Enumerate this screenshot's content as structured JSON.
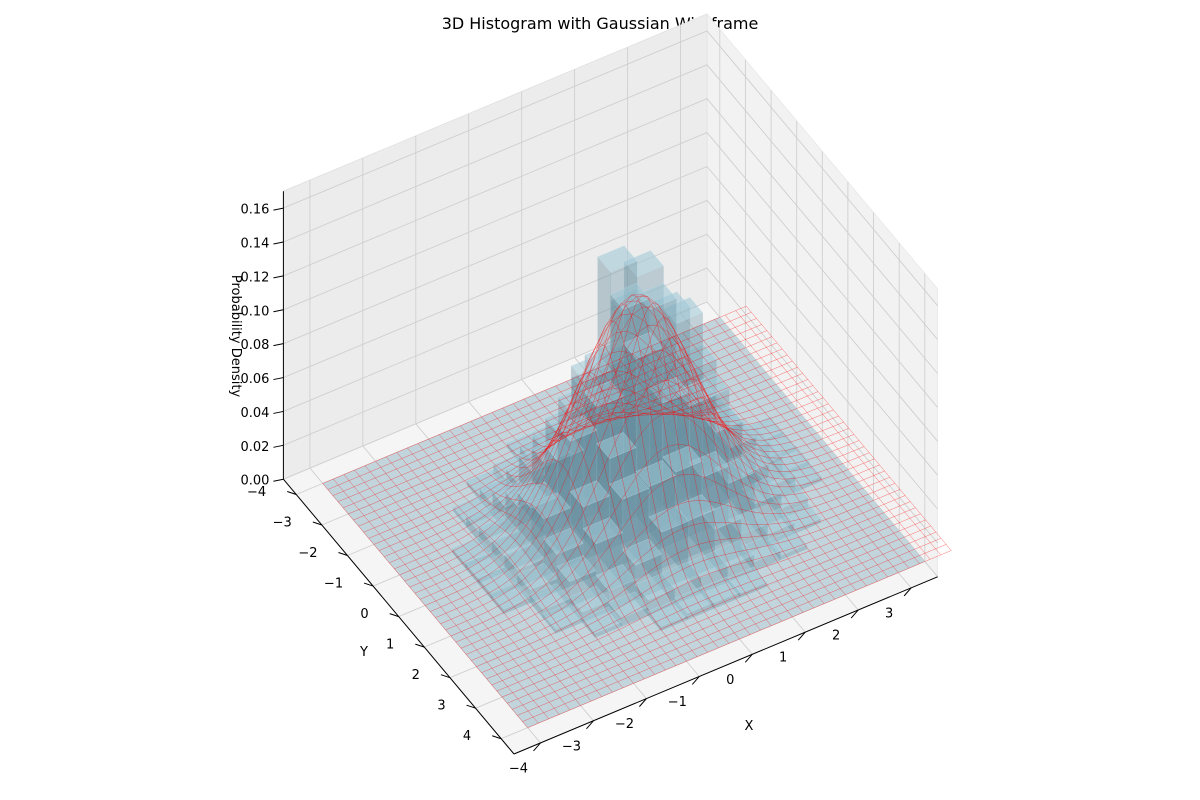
{
  "chart_data": {
    "type": "3d-histogram",
    "title": "3D Histogram with Gaussian Wireframe",
    "xlabel": "X",
    "ylabel": "Y",
    "zlabel": "Probability Density",
    "x_ticks": [
      "−4",
      "−3",
      "−2",
      "−1",
      "0",
      "1",
      "2",
      "3"
    ],
    "y_ticks": [
      "−4",
      "−3",
      "−2",
      "−1",
      "0",
      "1",
      "2",
      "3",
      "4"
    ],
    "z_ticks": [
      "0.00",
      "0.02",
      "0.04",
      "0.06",
      "0.08",
      "0.10",
      "0.12",
      "0.14",
      "0.16"
    ],
    "xlim": [
      -4.5,
      3.5
    ],
    "ylim": [
      -4.5,
      4.5
    ],
    "zlim": [
      0,
      0.17
    ],
    "series": [
      {
        "kind": "histogram-bars",
        "distribution": "bivariate normal, mean (0, 0), std 1",
        "bin_width": 0.5,
        "approx_peak_density": 0.14,
        "color": "#add8e6",
        "alpha": 0.5
      },
      {
        "kind": "wireframe",
        "function": "bivariate Gaussian density",
        "approx_peak_density": 0.13,
        "color": "#ff0000",
        "range": [
          -4,
          4
        ]
      }
    ],
    "grid": true,
    "view": {
      "elevation_deg": 35,
      "azimuth_deg": 60
    }
  }
}
